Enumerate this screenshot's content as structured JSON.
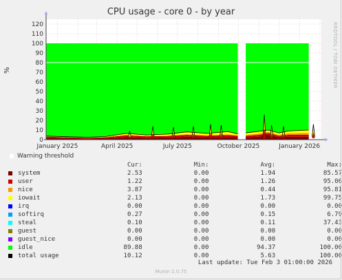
{
  "title": "CPU usage - core 0 - by year",
  "side_label": "RRDTOOL / TOBI OETIKER",
  "warning_label": "Warning threshold",
  "legend_headers": {
    "cur": "Cur:",
    "min": "Min:",
    "avg": "Avg:",
    "max": "Max:"
  },
  "legend": [
    {
      "name": "system",
      "color": "#7a0000",
      "cur": "2.53",
      "min": "0.00",
      "avg": "1.94",
      "max": "85.57"
    },
    {
      "name": "user",
      "color": "#cc0000",
      "cur": "1.22",
      "min": "0.00",
      "avg": "1.26",
      "max": "95.06"
    },
    {
      "name": "nice",
      "color": "#f59a00",
      "cur": "3.87",
      "min": "0.00",
      "avg": "0.44",
      "max": "95.81"
    },
    {
      "name": "iowait",
      "color": "#ffff00",
      "cur": "2.13",
      "min": "0.00",
      "avg": "1.73",
      "max": "99.75"
    },
    {
      "name": "irq",
      "color": "#0000ff",
      "cur": "0.00",
      "min": "0.00",
      "avg": "0.00",
      "max": "0.00"
    },
    {
      "name": "softirq",
      "color": "#00a0ff",
      "cur": "0.27",
      "min": "0.00",
      "avg": "0.15",
      "max": "6.79"
    },
    {
      "name": "steal",
      "color": "#00ffff",
      "cur": "0.10",
      "min": "0.00",
      "avg": "0.11",
      "max": "37.43"
    },
    {
      "name": "guest",
      "color": "#808000",
      "cur": "0.00",
      "min": "0.00",
      "avg": "0.00",
      "max": "0.00"
    },
    {
      "name": "guest_nice",
      "color": "#8000ff",
      "cur": "0.00",
      "min": "0.00",
      "avg": "0.00",
      "max": "0.00"
    },
    {
      "name": "idle",
      "color": "#00ff00",
      "cur": "89.88",
      "min": "0.00",
      "avg": "94.37",
      "max": "100.00"
    },
    {
      "name": "total usage",
      "color": "#000000",
      "cur": "10.12",
      "min": "0.00",
      "avg": "5.63",
      "max": "100.00"
    }
  ],
  "last_update": "Last update: Tue Feb  3 01:00:00 2026",
  "footer": "Munin 2.0.75",
  "chart_data": {
    "type": "area",
    "title": "CPU usage - core 0 - by year",
    "ylabel": "%",
    "xlabel": "",
    "ylim": [
      0,
      125
    ],
    "yticks": [
      0,
      10,
      20,
      30,
      40,
      50,
      60,
      70,
      80,
      90,
      100,
      110,
      120
    ],
    "xlim": [
      "2024-12-15",
      "2026-02-03"
    ],
    "xticks": [
      {
        "label": "January 2025",
        "date": "2025-01-01"
      },
      {
        "label": "April 2025",
        "date": "2025-04-01"
      },
      {
        "label": "July 2025",
        "date": "2025-07-01"
      },
      {
        "label": "October 2025",
        "date": "2025-10-01"
      },
      {
        "label": "January 2026",
        "date": "2026-01-01"
      }
    ],
    "warning_threshold": 80,
    "gaps": [
      [
        "2025-10-01",
        "2025-10-12"
      ],
      [
        "2026-01-28",
        "2026-01-30"
      ]
    ],
    "grid": true,
    "stacked": true,
    "series": [
      {
        "name": "system",
        "color": "#7a0000",
        "points": [
          [
            "2024-12-15",
            2
          ],
          [
            "2025-01-15",
            1.5
          ],
          [
            "2025-02-15",
            1.2
          ],
          [
            "2025-03-15",
            1.5
          ],
          [
            "2025-04-15",
            2.5
          ],
          [
            "2025-05-15",
            2
          ],
          [
            "2025-06-15",
            2.2
          ],
          [
            "2025-07-15",
            3
          ],
          [
            "2025-08-15",
            2.5
          ],
          [
            "2025-09-15",
            2.8
          ],
          [
            "2025-09-30",
            2.5
          ],
          [
            "2025-10-12",
            2.5
          ],
          [
            "2025-11-01",
            3
          ],
          [
            "2025-11-15",
            5
          ],
          [
            "2025-12-01",
            2.5
          ],
          [
            "2025-12-15",
            3
          ],
          [
            "2026-01-15",
            3
          ],
          [
            "2026-02-03",
            2.5
          ]
        ]
      },
      {
        "name": "user",
        "color": "#cc0000",
        "points": [
          [
            "2024-12-15",
            1
          ],
          [
            "2025-01-15",
            1
          ],
          [
            "2025-02-15",
            0.8
          ],
          [
            "2025-03-15",
            1
          ],
          [
            "2025-04-15",
            2
          ],
          [
            "2025-05-15",
            1.5
          ],
          [
            "2025-06-15",
            1.5
          ],
          [
            "2025-07-15",
            2
          ],
          [
            "2025-08-15",
            1.5
          ],
          [
            "2025-09-15",
            2
          ],
          [
            "2025-09-30",
            1.5
          ],
          [
            "2025-10-12",
            1.5
          ],
          [
            "2025-11-01",
            2
          ],
          [
            "2025-11-15",
            2
          ],
          [
            "2025-12-01",
            1.5
          ],
          [
            "2025-12-15",
            2
          ],
          [
            "2026-01-15",
            2
          ],
          [
            "2026-02-03",
            1.2
          ]
        ]
      },
      {
        "name": "nice",
        "color": "#f59a00",
        "points": [
          [
            "2024-12-15",
            0.2
          ],
          [
            "2025-01-15",
            0.2
          ],
          [
            "2025-02-15",
            0.2
          ],
          [
            "2025-03-15",
            0.3
          ],
          [
            "2025-04-15",
            0.5
          ],
          [
            "2025-05-15",
            0.4
          ],
          [
            "2025-06-15",
            0.5
          ],
          [
            "2025-07-15",
            0.6
          ],
          [
            "2025-08-15",
            0.5
          ],
          [
            "2025-09-15",
            0.6
          ],
          [
            "2025-09-30",
            0.5
          ],
          [
            "2025-10-12",
            1
          ],
          [
            "2025-11-01",
            1.2
          ],
          [
            "2025-11-15",
            1
          ],
          [
            "2025-12-01",
            1
          ],
          [
            "2025-12-15",
            1.5
          ],
          [
            "2026-01-15",
            2
          ],
          [
            "2026-02-03",
            3.9
          ]
        ]
      },
      {
        "name": "iowait",
        "color": "#ffff00",
        "points": [
          [
            "2024-12-15",
            0.5
          ],
          [
            "2025-01-15",
            0.4
          ],
          [
            "2025-02-15",
            0.4
          ],
          [
            "2025-03-15",
            0.5
          ],
          [
            "2025-04-15",
            1.5
          ],
          [
            "2025-05-15",
            1
          ],
          [
            "2025-06-15",
            1.5
          ],
          [
            "2025-07-15",
            2.5
          ],
          [
            "2025-08-15",
            2
          ],
          [
            "2025-09-15",
            3
          ],
          [
            "2025-09-30",
            1.5
          ],
          [
            "2025-10-12",
            2
          ],
          [
            "2025-11-01",
            2.5
          ],
          [
            "2025-11-15",
            2
          ],
          [
            "2025-12-01",
            2
          ],
          [
            "2025-12-15",
            2.5
          ],
          [
            "2026-01-15",
            3
          ],
          [
            "2026-02-03",
            2.1
          ]
        ]
      },
      {
        "name": "idle",
        "color": "#00ff00",
        "points": [
          [
            "2024-12-15",
            96.3
          ],
          [
            "2025-01-15",
            96.9
          ],
          [
            "2025-02-15",
            97.4
          ],
          [
            "2025-03-15",
            96.7
          ],
          [
            "2025-04-15",
            93.5
          ],
          [
            "2025-05-15",
            95.1
          ],
          [
            "2025-06-15",
            94.3
          ],
          [
            "2025-07-15",
            91.9
          ],
          [
            "2025-08-15",
            93.5
          ],
          [
            "2025-09-15",
            91.6
          ],
          [
            "2025-09-30",
            94
          ],
          [
            "2025-10-12",
            93
          ],
          [
            "2025-11-01",
            91.3
          ],
          [
            "2025-11-15",
            90
          ],
          [
            "2025-12-01",
            93
          ],
          [
            "2025-12-15",
            91
          ],
          [
            "2026-01-15",
            90
          ],
          [
            "2026-02-03",
            89.9
          ]
        ]
      },
      {
        "name": "total usage",
        "color": "#000000",
        "points": [
          [
            "2024-12-15",
            3.7
          ],
          [
            "2025-01-15",
            3.1
          ],
          [
            "2025-02-15",
            2.6
          ],
          [
            "2025-03-15",
            3.3
          ],
          [
            "2025-04-15",
            6.5
          ],
          [
            "2025-05-15",
            4.9
          ],
          [
            "2025-06-15",
            5.7
          ],
          [
            "2025-07-15",
            8.1
          ],
          [
            "2025-08-15",
            6.5
          ],
          [
            "2025-09-15",
            8.4
          ],
          [
            "2025-09-30",
            6
          ],
          [
            "2025-10-12",
            7
          ],
          [
            "2025-11-01",
            8.7
          ],
          [
            "2025-11-15",
            10
          ],
          [
            "2025-12-01",
            7
          ],
          [
            "2025-12-15",
            9
          ],
          [
            "2026-01-15",
            10
          ],
          [
            "2026-02-03",
            10.1
          ]
        ]
      }
    ],
    "spikes": [
      {
        "date": "2025-04-20",
        "total": 9
      },
      {
        "date": "2025-05-25",
        "total": 14
      },
      {
        "date": "2025-06-25",
        "total": 13
      },
      {
        "date": "2025-07-25",
        "total": 14
      },
      {
        "date": "2025-08-20",
        "total": 16
      },
      {
        "date": "2025-09-05",
        "total": 15
      },
      {
        "date": "2025-11-09",
        "total": 26
      },
      {
        "date": "2025-11-20",
        "total": 15
      },
      {
        "date": "2025-12-08",
        "total": 14
      },
      {
        "date": "2026-01-22",
        "total": 16
      }
    ]
  }
}
